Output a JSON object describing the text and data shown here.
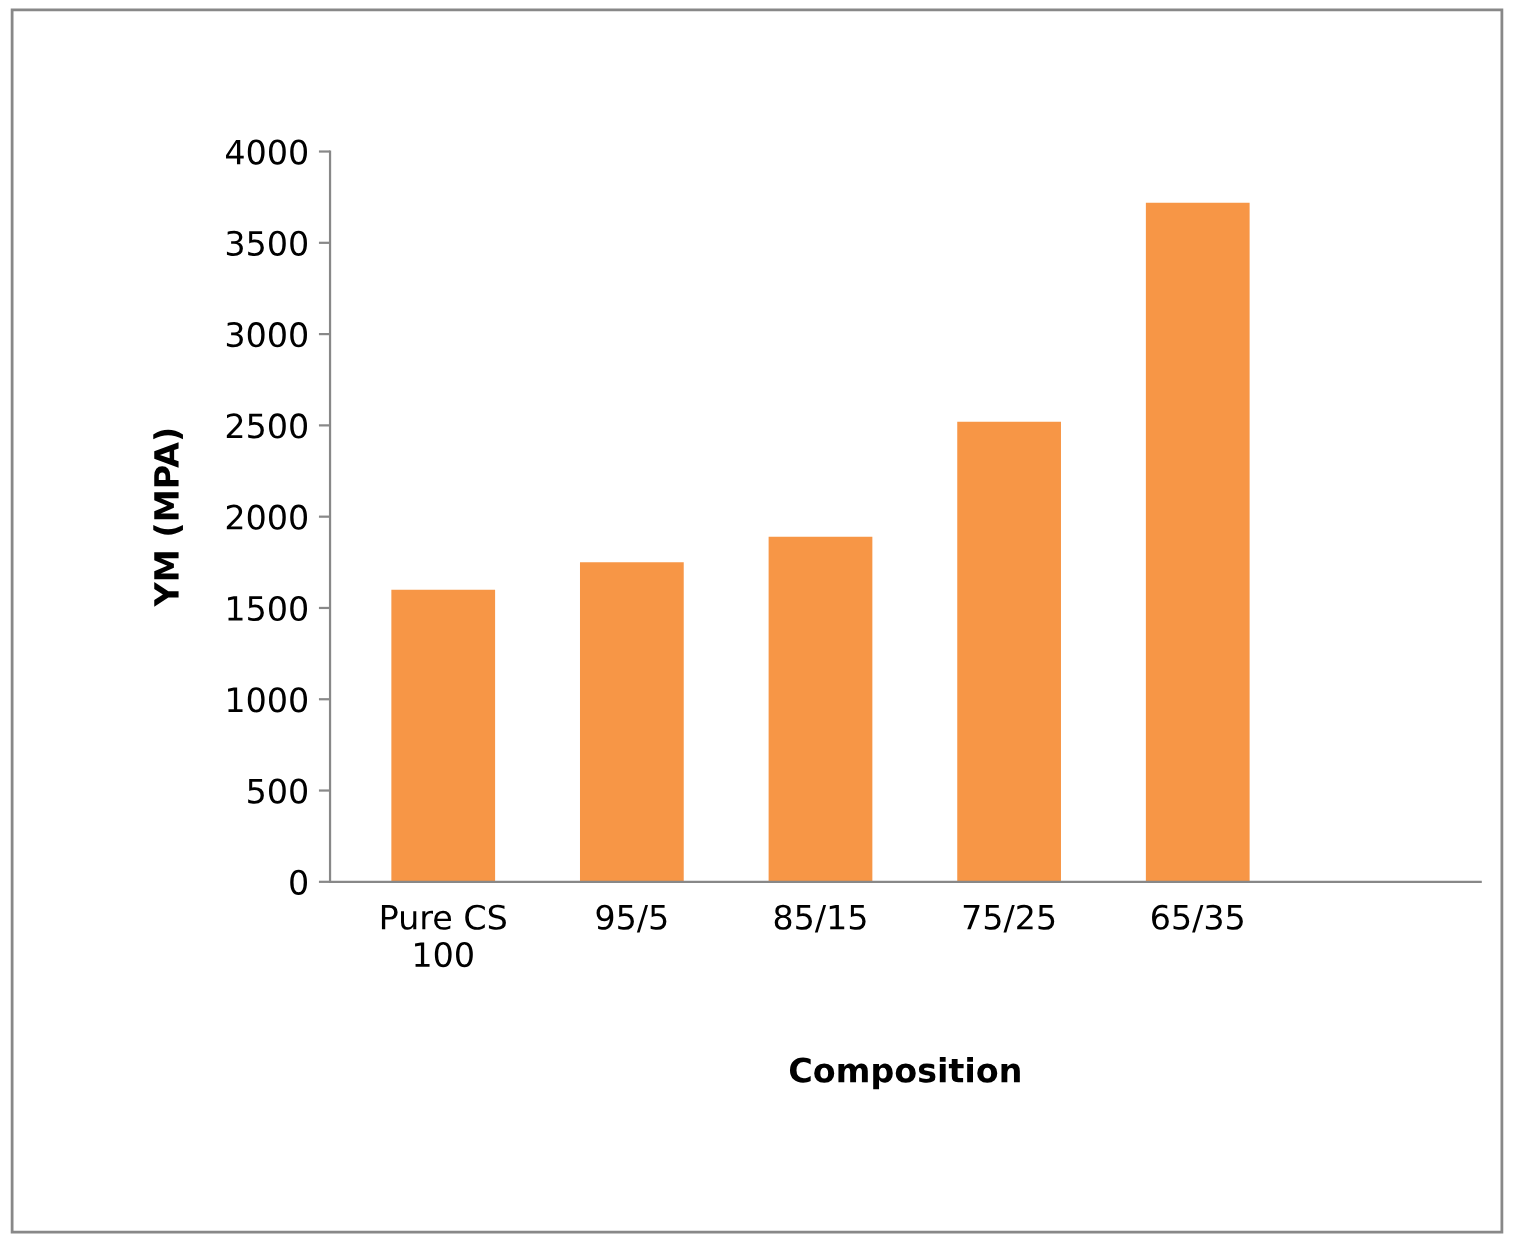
{
  "chart_data": {
    "type": "bar",
    "xlabel": "Composition",
    "ylabel": "YM (MPA)",
    "categories": [
      "Pure CS\n100",
      "95/5",
      "85/15",
      "75/25",
      "65/35",
      null
    ],
    "values": [
      1600,
      1750,
      1890,
      2520,
      3720,
      null
    ],
    "color": "#f79646",
    "ylim": [
      0,
      4000
    ],
    "yticks": [
      0,
      500,
      1000,
      1500,
      2000,
      2500,
      3000,
      3500,
      4000
    ],
    "grid": false,
    "legend": false
  }
}
